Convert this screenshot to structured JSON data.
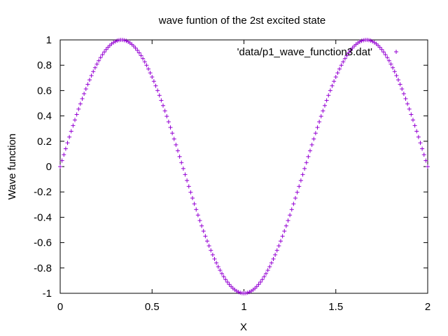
{
  "chart_data": {
    "type": "scatter",
    "title": "wave funtion of the 2st excited state",
    "xlabel": "X",
    "ylabel": "Wave function",
    "xlim": [
      0,
      2
    ],
    "ylim": [
      -1,
      1
    ],
    "xticks": [
      "0",
      "0.5",
      "1",
      "1.5",
      "2"
    ],
    "xtick_values": [
      0,
      0.5,
      1,
      1.5,
      2
    ],
    "yticks": [
      "-1",
      "-0.8",
      "-0.6",
      "-0.4",
      "-0.2",
      "0",
      "0.2",
      "0.4",
      "0.6",
      "0.8",
      "1"
    ],
    "ytick_values": [
      -1,
      -0.8,
      -0.6,
      -0.4,
      -0.2,
      0,
      0.2,
      0.4,
      0.6,
      0.8,
      1
    ],
    "grid": false,
    "legend_position": "top-right",
    "series": [
      {
        "name": "'data/p1_wave_function3.dat'",
        "color": "#9400d3",
        "marker": "plus",
        "function": "sin(3*pi*x/2)",
        "x_start": 0,
        "x_end": 2,
        "x_step": 0.01
      }
    ]
  }
}
